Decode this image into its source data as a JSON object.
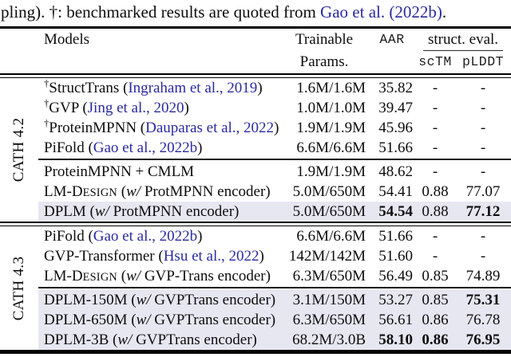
{
  "colors": {
    "highlight": "#e7e7f2",
    "cite": "#2a2aa0",
    "rule": "#000000"
  },
  "caption": {
    "segments": [
      {
        "t": "pling). †: benchmarked results are quoted from ",
        "s": "plain"
      },
      {
        "t": "Gao et al. (2022b)",
        "s": "cite"
      },
      {
        "t": ".",
        "s": "plain"
      }
    ]
  },
  "header": {
    "models": "Models",
    "trainable_line1": "Trainable",
    "trainable_line2": "Params.",
    "aar": "AAR",
    "struct_eval": "struct. eval.",
    "sctm": "scTM",
    "plddt": "pLDDT"
  },
  "sections": [
    {
      "label": "CATH 4.2",
      "groups": [
        {
          "rows": [
            {
              "model": [
                {
                  "t": "†",
                  "s": "sup"
                },
                {
                  "t": "StructTrans (",
                  "s": "plain"
                },
                {
                  "t": "Ingraham et al., 2019",
                  "s": "cite"
                },
                {
                  "t": ")",
                  "s": "plain"
                }
              ],
              "params": "1.6M/1.6M",
              "aar": {
                "v": "35.82",
                "b": false
              },
              "sctm": {
                "v": "-",
                "b": false
              },
              "plddt": {
                "v": "-",
                "b": false
              },
              "highlight": false
            },
            {
              "model": [
                {
                  "t": "†",
                  "s": "sup"
                },
                {
                  "t": "GVP (",
                  "s": "plain"
                },
                {
                  "t": "Jing et al., 2020",
                  "s": "cite"
                },
                {
                  "t": ")",
                  "s": "plain"
                }
              ],
              "params": "1.0M/1.0M",
              "aar": {
                "v": "39.47",
                "b": false
              },
              "sctm": {
                "v": "-",
                "b": false
              },
              "plddt": {
                "v": "-",
                "b": false
              },
              "highlight": false
            },
            {
              "model": [
                {
                  "t": "†",
                  "s": "sup"
                },
                {
                  "t": "ProteinMPNN (",
                  "s": "plain"
                },
                {
                  "t": "Dauparas et al., 2022",
                  "s": "cite"
                },
                {
                  "t": ")",
                  "s": "plain"
                }
              ],
              "params": "1.9M/1.9M",
              "aar": {
                "v": "45.96",
                "b": false
              },
              "sctm": {
                "v": "-",
                "b": false
              },
              "plddt": {
                "v": "-",
                "b": false
              },
              "highlight": false
            },
            {
              "model": [
                {
                  "t": "PiFold (",
                  "s": "plain"
                },
                {
                  "t": "Gao et al., 2022b",
                  "s": "cite"
                },
                {
                  "t": ")",
                  "s": "plain"
                }
              ],
              "params": "6.6M/6.6M",
              "aar": {
                "v": "51.66",
                "b": false
              },
              "sctm": {
                "v": "-",
                "b": false
              },
              "plddt": {
                "v": "-",
                "b": false
              },
              "highlight": false
            }
          ]
        },
        {
          "rows": [
            {
              "model": [
                {
                  "t": "ProteinMPNN + CMLM",
                  "s": "plain"
                }
              ],
              "params": "1.9M/1.9M",
              "aar": {
                "v": "48.62",
                "b": false
              },
              "sctm": {
                "v": "-",
                "b": false
              },
              "plddt": {
                "v": "-",
                "b": false
              },
              "highlight": false
            },
            {
              "model": [
                {
                  "t": "LM-D",
                  "s": "plain"
                },
                {
                  "t": "ESIGN",
                  "s": "sc"
                },
                {
                  "t": " (",
                  "s": "plain"
                },
                {
                  "t": "w/",
                  "s": "it"
                },
                {
                  "t": " ProtMPNN encoder)",
                  "s": "plain"
                }
              ],
              "params": "5.0M/650M",
              "aar": {
                "v": "54.41",
                "b": false
              },
              "sctm": {
                "v": "0.88",
                "b": false
              },
              "plddt": {
                "v": "77.07",
                "b": false
              },
              "highlight": false
            },
            {
              "model": [
                {
                  "t": "DPLM (",
                  "s": "plain"
                },
                {
                  "t": "w/",
                  "s": "it"
                },
                {
                  "t": " ProtMPNN encoder)",
                  "s": "plain"
                }
              ],
              "params": "5.0M/650M",
              "aar": {
                "v": "54.54",
                "b": true
              },
              "sctm": {
                "v": "0.88",
                "b": false
              },
              "plddt": {
                "v": "77.12",
                "b": true
              },
              "highlight": true
            }
          ]
        }
      ]
    },
    {
      "label": "CATH 4.3",
      "groups": [
        {
          "rows": [
            {
              "model": [
                {
                  "t": "PiFold (",
                  "s": "plain"
                },
                {
                  "t": "Gao et al., 2022b",
                  "s": "cite"
                },
                {
                  "t": ")",
                  "s": "plain"
                }
              ],
              "params": "6.6M/6.6M",
              "aar": {
                "v": "51.66",
                "b": false
              },
              "sctm": {
                "v": "-",
                "b": false
              },
              "plddt": {
                "v": "-",
                "b": false
              },
              "highlight": false
            },
            {
              "model": [
                {
                  "t": "GVP-Transformer (",
                  "s": "plain"
                },
                {
                  "t": "Hsu et al., 2022",
                  "s": "cite"
                },
                {
                  "t": ")",
                  "s": "plain"
                }
              ],
              "params": "142M/142M",
              "aar": {
                "v": "51.60",
                "b": false
              },
              "sctm": {
                "v": "-",
                "b": false
              },
              "plddt": {
                "v": "-",
                "b": false
              },
              "highlight": false
            },
            {
              "model": [
                {
                  "t": "LM-D",
                  "s": "plain"
                },
                {
                  "t": "ESIGN",
                  "s": "sc"
                },
                {
                  "t": " (",
                  "s": "plain"
                },
                {
                  "t": "w/",
                  "s": "it"
                },
                {
                  "t": " GVP-Trans encoder)",
                  "s": "plain"
                }
              ],
              "params": "6.3M/650M",
              "aar": {
                "v": "56.49",
                "b": false
              },
              "sctm": {
                "v": "0.85",
                "b": false
              },
              "plddt": {
                "v": "74.89",
                "b": false
              },
              "highlight": false
            }
          ]
        },
        {
          "rows": [
            {
              "model": [
                {
                  "t": "DPLM-150M (",
                  "s": "plain"
                },
                {
                  "t": "w/",
                  "s": "it"
                },
                {
                  "t": " GVPTrans encoder)",
                  "s": "plain"
                }
              ],
              "params": "3.1M/150M",
              "aar": {
                "v": "53.27",
                "b": false
              },
              "sctm": {
                "v": "0.85",
                "b": false
              },
              "plddt": {
                "v": "75.31",
                "b": true
              },
              "highlight": true
            },
            {
              "model": [
                {
                  "t": "DPLM-650M (",
                  "s": "plain"
                },
                {
                  "t": "w/",
                  "s": "it"
                },
                {
                  "t": " GVPTrans encoder)",
                  "s": "plain"
                }
              ],
              "params": "6.3M/650M",
              "aar": {
                "v": "56.61",
                "b": false
              },
              "sctm": {
                "v": "0.86",
                "b": false
              },
              "plddt": {
                "v": "76.78",
                "b": false
              },
              "highlight": true
            },
            {
              "model": [
                {
                  "t": "DPLM-3B (",
                  "s": "plain"
                },
                {
                  "t": "w/",
                  "s": "it"
                },
                {
                  "t": " GVPTrans encoder)",
                  "s": "plain"
                }
              ],
              "params": "68.2M/3.0B",
              "aar": {
                "v": "58.10",
                "b": true
              },
              "sctm": {
                "v": "0.86",
                "b": true
              },
              "plddt": {
                "v": "76.95",
                "b": true
              },
              "highlight": true
            }
          ]
        }
      ]
    }
  ]
}
